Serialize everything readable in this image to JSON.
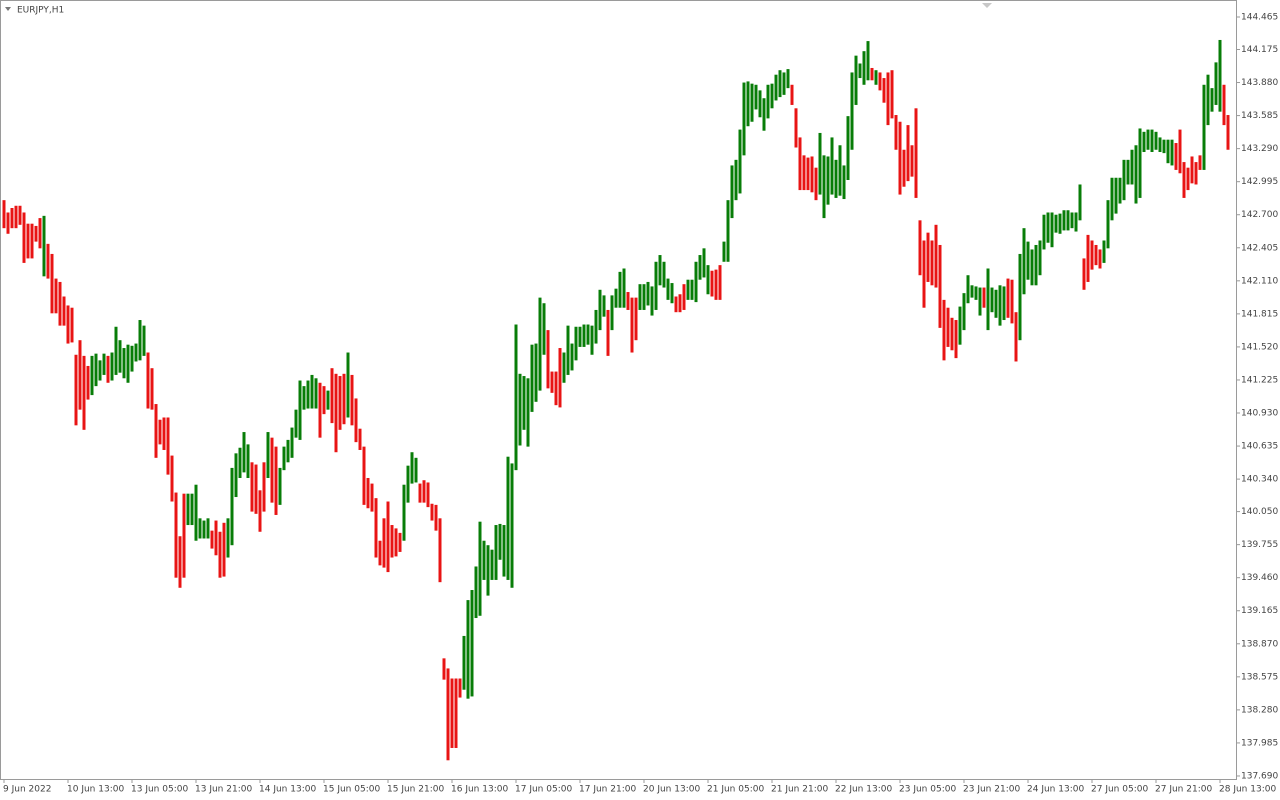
{
  "chart_data": {
    "type": "hl-bar",
    "title": "EURJPY,H1",
    "up_color": "#087d08",
    "down_color": "#e81414",
    "ylim": [
      137.663,
      144.59
    ],
    "yticks": [
      144.465,
      144.175,
      {
        "value": 143.88,
        "label": "143.880"
      },
      143.585,
      {
        "value": 143.29,
        "label": "143.290"
      },
      142.995,
      {
        "value": 142.7,
        "label": "142.700"
      },
      142.405,
      {
        "value": 142.11,
        "label": "142.110"
      },
      141.815,
      {
        "value": 141.52,
        "label": "141.520"
      },
      141.225,
      {
        "value": 140.93,
        "label": "140.930"
      },
      140.635,
      {
        "value": 140.34,
        "label": "140.340"
      },
      {
        "value": 140.05,
        "label": "140.050"
      },
      139.755,
      {
        "value": 139.46,
        "label": "139.460"
      },
      139.165,
      {
        "value": 138.87,
        "label": "138.870"
      },
      138.575,
      {
        "value": 138.28,
        "label": "138.280"
      },
      137.985,
      {
        "value": 137.69,
        "label": "137.690"
      }
    ],
    "categories": [
      "9 Jun 2022",
      null,
      null,
      null,
      null,
      null,
      null,
      null,
      null,
      null,
      null,
      null,
      null,
      null,
      null,
      null,
      "10 Jun 13:00",
      null,
      null,
      null,
      null,
      null,
      null,
      null,
      null,
      null,
      null,
      null,
      null,
      null,
      null,
      null,
      "13 Jun 05:00",
      null,
      null,
      null,
      null,
      null,
      null,
      null,
      null,
      null,
      null,
      null,
      null,
      null,
      null,
      null,
      "13 Jun 21:00",
      null,
      null,
      null,
      null,
      null,
      null,
      null,
      null,
      null,
      null,
      null,
      null,
      null,
      null,
      null,
      "14 Jun 13:00",
      null,
      null,
      null,
      null,
      null,
      null,
      null,
      null,
      null,
      null,
      null,
      null,
      null,
      null,
      null,
      "15 Jun 05:00",
      null,
      null,
      null,
      null,
      null,
      null,
      null,
      null,
      null,
      null,
      null,
      null,
      null,
      null,
      null,
      "15 Jun 21:00",
      null,
      null,
      null,
      null,
      null,
      null,
      null,
      null,
      null,
      null,
      null,
      null,
      null,
      null,
      null,
      "16 Jun 13:00",
      null,
      null,
      null,
      null,
      null,
      null,
      null,
      null,
      null,
      null,
      null,
      null,
      null,
      null,
      null,
      "17 Jun 05:00",
      null,
      null,
      null,
      null,
      null,
      null,
      null,
      null,
      null,
      null,
      null,
      null,
      null,
      null,
      null,
      "17 Jun 21:00",
      null,
      null,
      null,
      null,
      null,
      null,
      null,
      null,
      null,
      null,
      null,
      null,
      null,
      null,
      null,
      "20 Jun 13:00",
      null,
      null,
      null,
      null,
      null,
      null,
      null,
      null,
      null,
      null,
      null,
      null,
      null,
      null,
      null,
      "21 Jun 05:00",
      null,
      null,
      null,
      null,
      null,
      null,
      null,
      null,
      null,
      null,
      null,
      null,
      null,
      null,
      null,
      "21 Jun 21:00",
      null,
      null,
      null,
      null,
      null,
      null,
      null,
      null,
      null,
      null,
      null,
      null,
      null,
      null,
      null,
      "22 Jun 13:00",
      null,
      null,
      null,
      null,
      null,
      null,
      null,
      null,
      null,
      null,
      null,
      null,
      null,
      null,
      null,
      "23 Jun 05:00",
      null,
      null,
      null,
      null,
      null,
      null,
      null,
      null,
      null,
      null,
      null,
      null,
      null,
      null,
      null,
      "23 Jun 21:00",
      null,
      null,
      null,
      null,
      null,
      null,
      null,
      null,
      null,
      null,
      null,
      null,
      null,
      null,
      null,
      "24 Jun 13:00",
      null,
      null,
      null,
      null,
      null,
      null,
      null,
      null,
      null,
      null,
      null,
      null,
      null,
      null,
      null,
      "27 Jun 05:00",
      null,
      null,
      null,
      null,
      null,
      null,
      null,
      null,
      null,
      null,
      null,
      null,
      null,
      null,
      null,
      "27 Jun 21:00",
      null,
      null,
      null,
      null,
      null,
      null,
      null,
      null,
      null,
      null,
      null,
      null,
      null,
      null,
      null,
      "28 Jun 13:00",
      null,
      null
    ],
    "high": [
      142.83,
      142.72,
      142.76,
      142.78,
      142.78,
      142.72,
      142.62,
      142.62,
      142.6,
      142.67,
      142.69,
      142.44,
      142.35,
      142.13,
      142.1,
      141.97,
      141.89,
      141.87,
      141.45,
      141.58,
      141.44,
      141.35,
      141.44,
      141.46,
      141.4,
      141.46,
      141.44,
      141.47,
      141.7,
      141.58,
      141.51,
      141.54,
      141.53,
      141.55,
      141.76,
      141.71,
      141.47,
      141.33,
      141.01,
      140.87,
      140.89,
      140.89,
      140.55,
      140.22,
      139.83,
      140.21,
      140.21,
      140.21,
      140.29,
      139.99,
      139.97,
      139.99,
      139.88,
      139.97,
      139.87,
      139.95,
      139.99,
      140.44,
      140.57,
      140.62,
      140.76,
      140.65,
      140.49,
      140.47,
      140.24,
      140.49,
      140.76,
      140.71,
      140.63,
      140.44,
      140.63,
      140.69,
      140.8,
      140.96,
      141.22,
      141.17,
      141.22,
      141.27,
      141.24,
      141.2,
      141.17,
      141.13,
      141.33,
      141.28,
      141.26,
      141.28,
      141.47,
      141.27,
      141.06,
      140.79,
      140.63,
      140.35,
      140.3,
      140.17,
      139.79,
      139.99,
      140.14,
      139.93,
      139.9,
      139.86,
      140.29,
      140.46,
      140.58,
      140.53,
      140.3,
      140.33,
      140.31,
      140.12,
      140.11,
      139.99,
      138.74,
      138.65,
      138.56,
      138.56,
      138.56,
      138.94,
      139.26,
      139.35,
      139.56,
      139.96,
      139.79,
      139.75,
      139.71,
      139.93,
      139.94,
      139.93,
      140.54,
      140.48,
      141.72,
      141.28,
      141.26,
      141.24,
      141.54,
      141.55,
      141.96,
      141.91,
      141.67,
      141.3,
      141.3,
      141.51,
      141.47,
      141.71,
      141.55,
      141.7,
      141.7,
      141.72,
      141.72,
      141.71,
      141.85,
      142.03,
      141.98,
      141.85,
      141.98,
      142.04,
      142.19,
      142.22,
      142.01,
      141.96,
      141.96,
      142.08,
      142.08,
      142.1,
      142.06,
      142.28,
      142.34,
      142.28,
      142.13,
      142.09,
      141.97,
      141.99,
      142.08,
      142.12,
      142.12,
      142.28,
      142.34,
      142.4,
      142.25,
      142.2,
      142.21,
      142.25,
      142.46,
      142.83,
      143.14,
      143.19,
      143.46,
      143.88,
      143.89,
      143.87,
      143.86,
      143.81,
      143.74,
      143.86,
      143.87,
      143.95,
      143.99,
      143.97,
      144.0,
      143.86,
      143.65,
      143.39,
      143.23,
      143.21,
      143.22,
      143.12,
      143.43,
      143.23,
      143.22,
      143.39,
      143.19,
      143.32,
      143.14,
      143.58,
      143.97,
      144.12,
      144.05,
      144.16,
      144.25,
      144.01,
      143.99,
      143.97,
      143.92,
      143.97,
      143.99,
      143.59,
      143.53,
      143.28,
      143.5,
      143.32,
      143.65,
      142.65,
      142.47,
      142.54,
      142.47,
      142.61,
      142.43,
      141.94,
      141.87,
      141.78,
      141.76,
      141.88,
      142.0,
      142.16,
      142.07,
      142.06,
      142.05,
      142.05,
      142.22,
      142.05,
      142.03,
      142.07,
      142.06,
      142.13,
      142.12,
      141.83,
      142.35,
      142.58,
      142.46,
      142.39,
      142.43,
      142.47,
      142.7,
      142.72,
      142.72,
      142.7,
      142.71,
      142.74,
      142.74,
      142.72,
      142.72,
      142.97,
      142.31,
      142.52,
      142.47,
      142.43,
      142.39,
      142.47,
      142.83,
      143.03,
      143.03,
      143.03,
      143.19,
      143.19,
      143.28,
      143.32,
      143.47,
      143.44,
      143.46,
      143.46,
      143.44,
      143.39,
      143.37,
      143.37,
      143.37,
      143.34,
      143.46,
      143.17,
      143.12,
      143.22,
      143.17,
      143.23,
      143.86,
      143.95,
      143.83,
      144.06,
      144.26,
      143.86,
      143.59
    ],
    "low": [
      142.58,
      142.53,
      142.58,
      142.58,
      142.61,
      142.27,
      142.31,
      142.31,
      142.46,
      142.4,
      142.15,
      142.13,
      141.82,
      141.82,
      141.71,
      141.71,
      141.55,
      141.56,
      140.82,
      140.96,
      140.78,
      141.05,
      141.09,
      141.17,
      141.22,
      141.27,
      141.2,
      141.22,
      141.27,
      141.29,
      141.24,
      141.2,
      141.3,
      141.39,
      141.4,
      141.44,
      140.97,
      140.96,
      140.53,
      140.65,
      140.6,
      140.38,
      140.14,
      139.46,
      139.37,
      139.46,
      139.93,
      139.93,
      139.79,
      139.81,
      139.81,
      139.81,
      139.72,
      139.66,
      139.46,
      139.47,
      139.64,
      139.75,
      140.18,
      140.35,
      140.4,
      140.35,
      140.05,
      140.03,
      139.87,
      140.05,
      140.35,
      140.13,
      140.02,
      140.11,
      140.42,
      140.49,
      140.53,
      140.71,
      140.69,
      140.96,
      140.97,
      140.97,
      140.97,
      140.71,
      140.92,
      140.96,
      140.84,
      140.58,
      140.78,
      140.83,
      140.89,
      140.82,
      140.67,
      140.6,
      140.11,
      140.08,
      140.05,
      139.64,
      139.57,
      139.55,
      139.51,
      139.64,
      139.65,
      139.69,
      139.79,
      140.13,
      140.3,
      140.31,
      140.13,
      140.13,
      140.09,
      139.97,
      139.88,
      139.42,
      138.55,
      137.83,
      137.94,
      137.94,
      138.39,
      138.46,
      138.38,
      138.4,
      139.1,
      139.12,
      139.44,
      139.3,
      139.44,
      139.44,
      139.62,
      139.47,
      139.44,
      139.37,
      140.42,
      140.64,
      140.78,
      140.63,
      140.94,
      141.03,
      141.13,
      141.45,
      141.15,
      141.11,
      141.0,
      140.98,
      141.2,
      141.27,
      141.31,
      141.4,
      141.52,
      141.52,
      141.54,
      141.45,
      141.55,
      141.67,
      141.79,
      141.44,
      141.67,
      141.87,
      141.87,
      141.87,
      141.85,
      141.47,
      141.58,
      141.85,
      141.85,
      141.89,
      141.8,
      141.85,
      142.07,
      142.05,
      141.94,
      141.91,
      141.83,
      141.83,
      141.85,
      141.94,
      141.94,
      141.92,
      142.12,
      142.14,
      141.99,
      141.97,
      141.94,
      141.94,
      142.28,
      142.28,
      142.67,
      142.83,
      142.89,
      143.23,
      143.49,
      143.53,
      143.64,
      143.57,
      143.45,
      143.56,
      143.65,
      143.72,
      143.75,
      143.77,
      143.83,
      143.68,
      143.3,
      142.92,
      142.92,
      142.92,
      142.9,
      142.83,
      142.88,
      142.67,
      142.79,
      142.88,
      142.85,
      142.87,
      142.84,
      143.01,
      143.28,
      143.68,
      143.92,
      143.86,
      143.9,
      143.9,
      143.86,
      143.81,
      143.7,
      143.5,
      143.56,
      143.28,
      142.88,
      142.95,
      143.0,
      143.04,
      142.85,
      142.16,
      141.87,
      142.1,
      142.07,
      142.05,
      141.69,
      141.4,
      141.52,
      141.49,
      141.42,
      141.54,
      141.67,
      141.91,
      141.96,
      141.94,
      141.8,
      141.87,
      141.67,
      141.83,
      141.78,
      141.71,
      141.76,
      141.78,
      141.73,
      141.39,
      141.58,
      141.99,
      142.12,
      142.07,
      142.07,
      142.16,
      142.39,
      142.45,
      142.41,
      142.54,
      142.53,
      142.56,
      142.56,
      142.58,
      142.55,
      142.65,
      142.03,
      142.1,
      142.21,
      142.25,
      142.22,
      142.27,
      142.4,
      142.65,
      142.71,
      142.8,
      142.83,
      142.97,
      142.97,
      142.8,
      142.85,
      143.26,
      143.28,
      143.26,
      143.28,
      143.26,
      143.25,
      143.16,
      143.14,
      143.1,
      143.07,
      142.85,
      142.92,
      142.98,
      142.97,
      143.1,
      143.1,
      143.5,
      143.62,
      143.68,
      143.62,
      143.5,
      143.28
    ],
    "up": [
      false,
      false,
      false,
      false,
      false,
      false,
      false,
      false,
      false,
      false,
      true,
      false,
      false,
      false,
      false,
      false,
      false,
      false,
      false,
      false,
      false,
      false,
      true,
      true,
      true,
      true,
      false,
      true,
      true,
      true,
      true,
      true,
      true,
      true,
      true,
      true,
      false,
      false,
      false,
      false,
      false,
      false,
      false,
      false,
      false,
      false,
      true,
      true,
      true,
      true,
      true,
      true,
      false,
      false,
      false,
      false,
      true,
      true,
      true,
      true,
      true,
      true,
      false,
      false,
      false,
      false,
      true,
      false,
      false,
      true,
      true,
      true,
      true,
      true,
      true,
      true,
      true,
      true,
      true,
      false,
      false,
      true,
      false,
      false,
      false,
      false,
      true,
      false,
      false,
      false,
      false,
      false,
      false,
      false,
      false,
      false,
      false,
      false,
      false,
      false,
      true,
      true,
      true,
      true,
      false,
      false,
      false,
      false,
      false,
      false,
      false,
      false,
      false,
      false,
      false,
      true,
      true,
      true,
      true,
      true,
      true,
      true,
      true,
      true,
      true,
      true,
      true,
      true,
      true,
      true,
      true,
      true,
      true,
      true,
      true,
      true,
      false,
      false,
      false,
      false,
      true,
      true,
      true,
      true,
      true,
      true,
      true,
      true,
      true,
      true,
      true,
      false,
      true,
      true,
      true,
      true,
      false,
      false,
      false,
      true,
      true,
      true,
      true,
      true,
      true,
      true,
      true,
      true,
      false,
      false,
      false,
      true,
      true,
      true,
      true,
      true,
      true,
      false,
      false,
      false,
      true,
      true,
      true,
      true,
      true,
      true,
      true,
      true,
      true,
      true,
      true,
      true,
      true,
      true,
      true,
      true,
      true,
      false,
      false,
      false,
      false,
      false,
      false,
      false,
      true,
      true,
      true,
      true,
      true,
      true,
      true,
      true,
      true,
      true,
      true,
      true,
      true,
      false,
      true,
      false,
      false,
      false,
      false,
      false,
      false,
      false,
      false,
      false,
      false,
      false,
      false,
      false,
      false,
      false,
      false,
      false,
      false,
      false,
      false,
      true,
      true,
      true,
      true,
      true,
      true,
      false,
      true,
      true,
      true,
      true,
      true,
      false,
      false,
      false,
      true,
      true,
      true,
      true,
      true,
      true,
      true,
      true,
      true,
      true,
      true,
      true,
      true,
      true,
      true,
      true,
      false,
      false,
      false,
      false,
      false,
      true,
      true,
      true,
      true,
      true,
      true,
      true,
      true,
      true,
      true,
      true,
      true,
      true,
      true,
      true,
      true,
      true,
      true,
      false,
      false,
      false,
      false,
      false,
      false,
      false,
      true,
      true,
      true,
      true,
      true,
      false,
      false
    ]
  }
}
